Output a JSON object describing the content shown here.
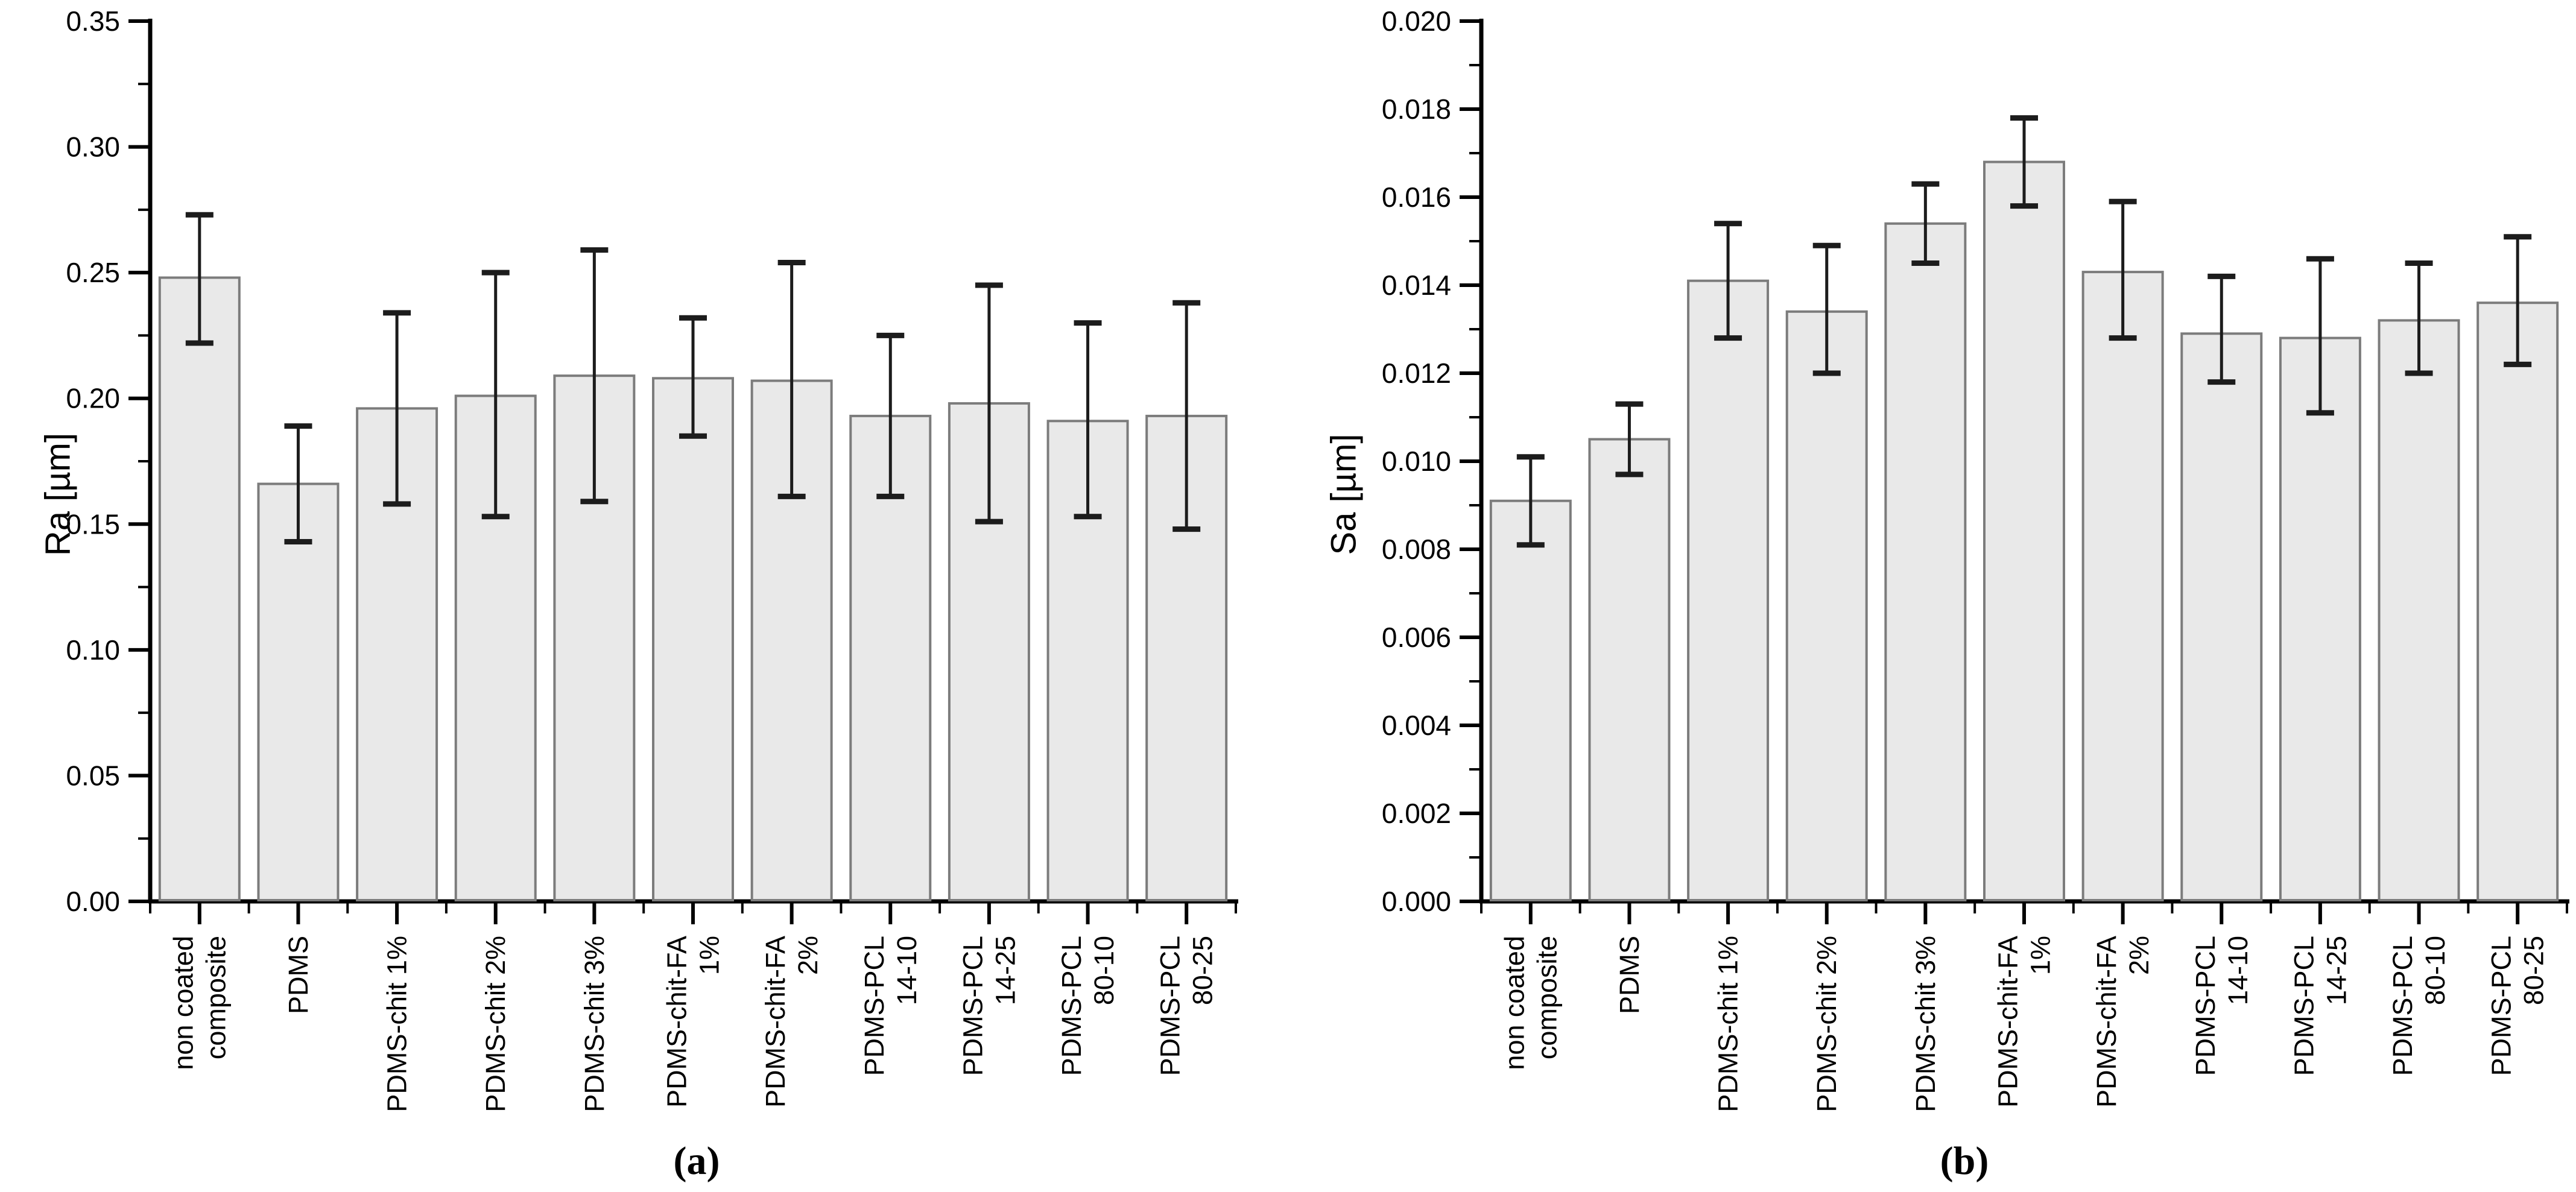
{
  "figure": {
    "background": "#ffffff",
    "bar_fill": "#e9e9e9",
    "bar_stroke": "#7c7c7c",
    "error_color": "#1c1c1c",
    "axis_color": "#000000",
    "text_color": "#000000"
  },
  "chart_data": [
    {
      "type": "bar",
      "panel": "a",
      "caption": "(a)",
      "title": "",
      "xlabel": "",
      "ylabel": "Ra [µm]",
      "ylim": [
        0,
        0.35
      ],
      "ytick_step": 0.05,
      "yminor_step": 0.025,
      "ytick_labels": [
        "0.00",
        "0.05",
        "0.10",
        "0.15",
        "0.20",
        "0.25",
        "0.30",
        "0.35"
      ],
      "grid": false,
      "legend": null,
      "categories": [
        "non coated\ncomposite",
        "PDMS",
        "PDMS-chit 1%",
        "PDMS-chit 2%",
        "PDMS-chit 3%",
        "PDMS-chit-FA\n1%",
        "PDMS-chit-FA\n2%",
        "PDMS-PCL\n14-10",
        "PDMS-PCL\n14-25",
        "PDMS-PCL\n80-10",
        "PDMS-PCL\n80-25"
      ],
      "values": [
        0.248,
        0.166,
        0.196,
        0.201,
        0.209,
        0.208,
        0.207,
        0.193,
        0.198,
        0.191,
        0.193
      ],
      "error_low": [
        0.222,
        0.143,
        0.158,
        0.153,
        0.159,
        0.185,
        0.161,
        0.161,
        0.151,
        0.153,
        0.148
      ],
      "error_high": [
        0.273,
        0.189,
        0.234,
        0.25,
        0.259,
        0.232,
        0.254,
        0.225,
        0.245,
        0.23,
        0.238
      ]
    },
    {
      "type": "bar",
      "panel": "b",
      "caption": "(b)",
      "title": "",
      "xlabel": "",
      "ylabel": "Sa [µm]",
      "ylim": [
        0,
        0.02
      ],
      "ytick_step": 0.002,
      "yminor_step": 0.001,
      "ytick_labels": [
        "0.000",
        "0.002",
        "0.004",
        "0.006",
        "0.008",
        "0.010",
        "0.012",
        "0.014",
        "0.016",
        "0.018",
        "0.020"
      ],
      "grid": false,
      "legend": null,
      "categories": [
        "non coated\ncomposite",
        "PDMS",
        "PDMS-chit 1%",
        "PDMS-chit 2%",
        "PDMS-chit 3%",
        "PDMS-chit-FA\n1%",
        "PDMS-chit-FA\n2%",
        "PDMS-PCL\n14-10",
        "PDMS-PCL\n14-25",
        "PDMS-PCL\n80-10",
        "PDMS-PCL\n80-25"
      ],
      "values": [
        0.0091,
        0.0105,
        0.0141,
        0.0134,
        0.0154,
        0.0168,
        0.0143,
        0.0129,
        0.0128,
        0.0132,
        0.0136
      ],
      "error_low": [
        0.0081,
        0.0097,
        0.0128,
        0.012,
        0.0145,
        0.0158,
        0.0128,
        0.0118,
        0.0111,
        0.012,
        0.0122
      ],
      "error_high": [
        0.0101,
        0.0113,
        0.0154,
        0.0149,
        0.0163,
        0.0178,
        0.0159,
        0.0142,
        0.0146,
        0.0145,
        0.0151
      ]
    }
  ]
}
